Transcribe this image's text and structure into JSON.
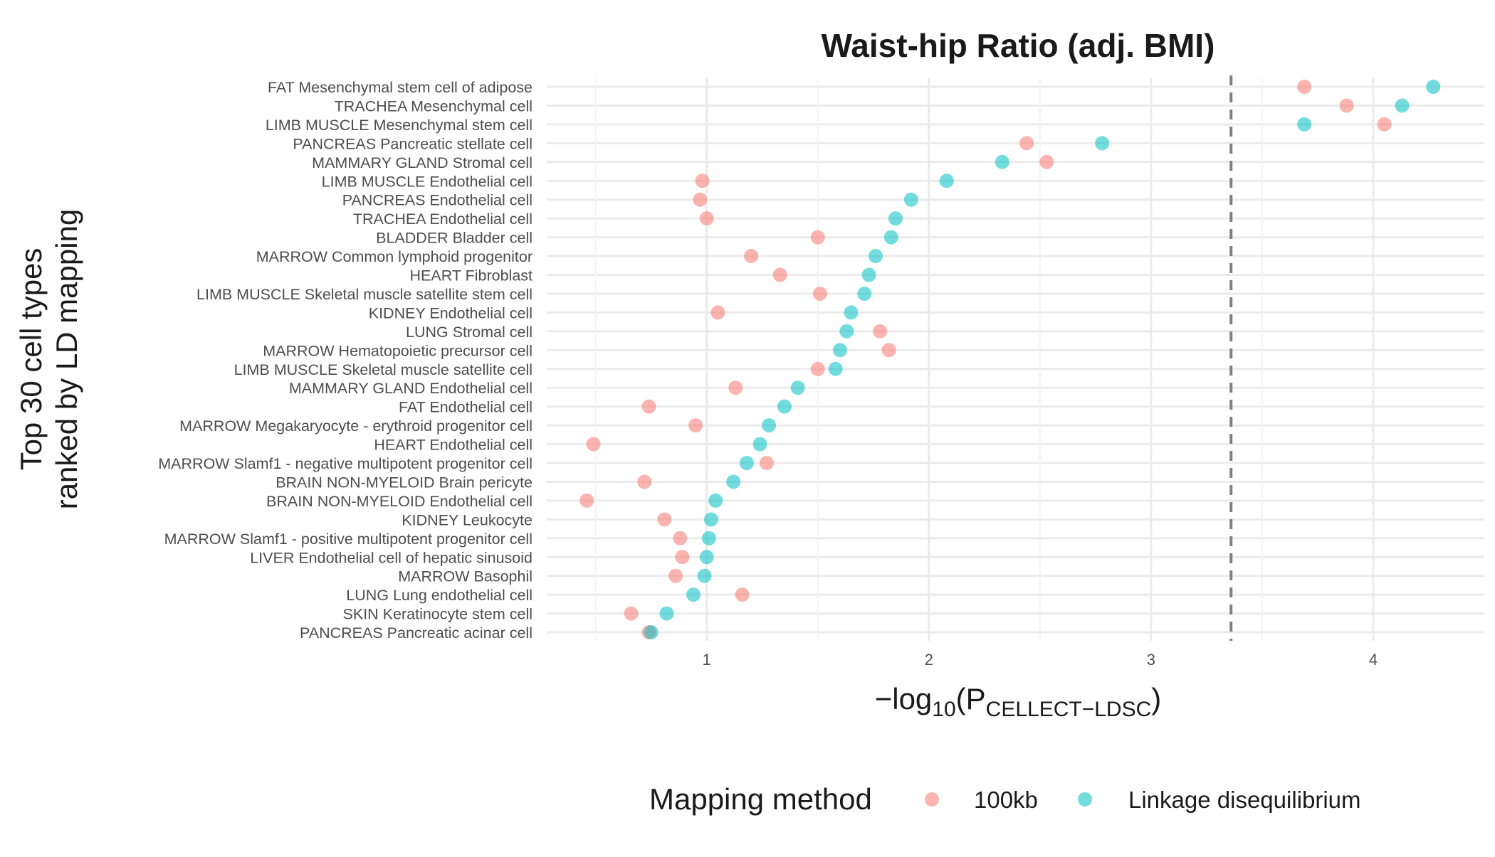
{
  "chart_data": {
    "type": "scatter",
    "title": "Waist-hip Ratio (adj. BMI)",
    "xlabel": {
      "prefix": "−log",
      "sub1": "10",
      "open": "(P",
      "sub2": "CELLECT−LDSC",
      "close": ")"
    },
    "ylabel": [
      "Top 30 cell types",
      "ranked by LD mapping"
    ],
    "xlim": [
      0.28,
      4.5
    ],
    "xticks": [
      1,
      2,
      3,
      4
    ],
    "minor_xticks": [
      0.5,
      1.5,
      2.5,
      3.5
    ],
    "threshold": 3.36,
    "grid": true,
    "legend": {
      "title": "Mapping method",
      "position": "bottom"
    },
    "categories": [
      "FAT Mesenchymal stem cell of adipose",
      "TRACHEA Mesenchymal cell",
      "LIMB MUSCLE Mesenchymal stem cell",
      "PANCREAS Pancreatic stellate cell",
      "MAMMARY GLAND Stromal cell",
      "LIMB MUSCLE Endothelial cell",
      "PANCREAS Endothelial cell",
      "TRACHEA Endothelial cell",
      "BLADDER Bladder cell",
      "MARROW Common lymphoid progenitor",
      "HEART Fibroblast",
      "LIMB MUSCLE Skeletal muscle satellite stem cell",
      "KIDNEY Endothelial cell",
      "LUNG Stromal cell",
      "MARROW Hematopoietic precursor cell",
      "LIMB MUSCLE Skeletal muscle satellite cell",
      "MAMMARY GLAND Endothelial cell",
      "FAT Endothelial cell",
      "MARROW Megakaryocyte - erythroid progenitor cell",
      "HEART Endothelial cell",
      "MARROW Slamf1 - negative multipotent progenitor cell",
      "BRAIN NON-MYELOID Brain pericyte",
      "BRAIN NON-MYELOID Endothelial cell",
      "KIDNEY Leukocyte",
      "MARROW Slamf1 - positive multipotent progenitor cell",
      "LIVER Endothelial cell of hepatic sinusoid",
      "MARROW Basophil",
      "LUNG Lung endothelial cell",
      "SKIN Keratinocyte stem cell",
      "PANCREAS Pancreatic acinar cell"
    ],
    "series": [
      {
        "name": "100kb",
        "color": "#F8766D",
        "values": [
          3.69,
          3.88,
          4.05,
          2.44,
          2.53,
          0.98,
          0.97,
          1.0,
          1.5,
          1.2,
          1.33,
          1.51,
          1.05,
          1.78,
          1.82,
          1.5,
          1.13,
          0.74,
          0.95,
          0.49,
          1.27,
          0.72,
          0.46,
          0.81,
          0.88,
          0.89,
          0.86,
          1.16,
          0.66,
          0.74
        ]
      },
      {
        "name": "Linkage disequilibrium",
        "color": "#00BFC4",
        "values": [
          4.27,
          4.13,
          3.69,
          2.78,
          2.33,
          2.08,
          1.92,
          1.85,
          1.83,
          1.76,
          1.73,
          1.71,
          1.65,
          1.63,
          1.6,
          1.58,
          1.41,
          1.35,
          1.28,
          1.24,
          1.18,
          1.12,
          1.04,
          1.02,
          1.01,
          1.0,
          0.99,
          0.94,
          0.82,
          0.75
        ]
      }
    ]
  }
}
